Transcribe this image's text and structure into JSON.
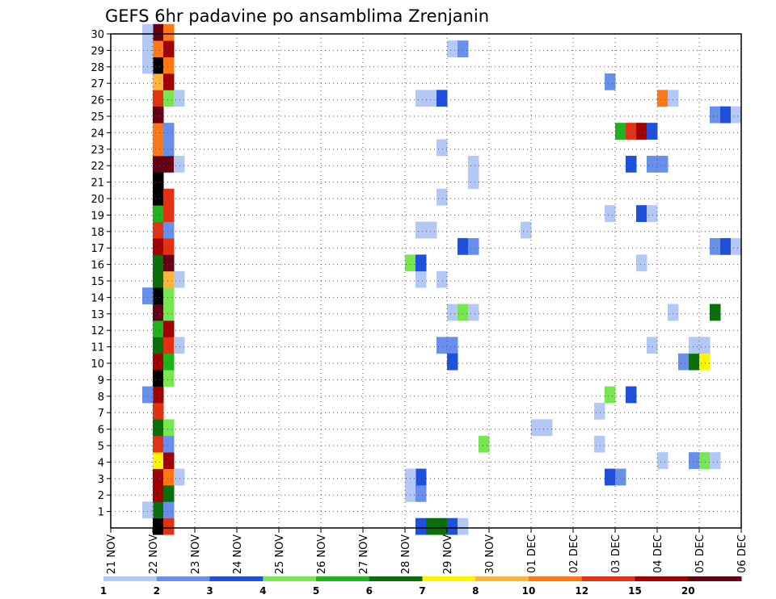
{
  "chart_data": {
    "type": "heatmap",
    "title": "GEFS 6hr padavine po ansamblima Zrenjanin",
    "x_ticks": [
      "21 NOV",
      "22 NOV",
      "23 NOV",
      "24 NOV",
      "25 NOV",
      "26 NOV",
      "27 NOV",
      "28 NOV",
      "29 NOV",
      "30 NOV",
      "01 DEC",
      "02 DEC",
      "03 DEC",
      "04 DEC",
      "05 DEC",
      "06 DEC"
    ],
    "y_ticks": [
      "1",
      "2",
      "3",
      "4",
      "5",
      "6",
      "7",
      "8",
      "9",
      "10",
      "11",
      "12",
      "13",
      "14",
      "15",
      "16",
      "17",
      "18",
      "19",
      "20",
      "21",
      "22",
      "23",
      "24",
      "25",
      "26",
      "27",
      "28",
      "29",
      "30"
    ],
    "x_unit": "6-hour steps after 21 NOV 00Z",
    "xlim": [
      0,
      60
    ],
    "ylim": [
      0,
      30
    ],
    "grid": true,
    "colorbar": {
      "labels": [
        "1",
        "2",
        "3",
        "4",
        "5",
        "6",
        "7",
        "8",
        "10",
        "12",
        "15",
        "20"
      ],
      "colors": [
        "#b4c8f5",
        "#6890eb",
        "#1f50dc",
        "#78e650",
        "#1eb41e",
        "#0a6e0a",
        "#fff500",
        "#ffb43c",
        "#ff7814",
        "#e13214",
        "#a00000",
        "#640014"
      ]
    },
    "cells": [
      [
        4.5,
        0,
        12
      ],
      [
        4.5,
        1,
        5
      ],
      [
        4.5,
        2,
        10
      ],
      [
        4.5,
        3,
        10
      ],
      [
        4.5,
        4,
        6
      ],
      [
        4.5,
        5,
        9
      ],
      [
        4.5,
        6,
        5
      ],
      [
        4.5,
        7,
        9
      ],
      [
        4.5,
        8,
        10
      ],
      [
        4.5,
        9,
        12
      ],
      [
        4.5,
        10,
        10
      ],
      [
        4.5,
        11,
        5
      ],
      [
        4.5,
        12,
        4
      ],
      [
        4.5,
        13,
        11
      ],
      [
        4.5,
        14,
        12
      ],
      [
        4.5,
        15,
        5
      ],
      [
        4.5,
        16,
        5
      ],
      [
        4.5,
        17,
        10
      ],
      [
        4.5,
        18,
        9
      ],
      [
        4.5,
        19,
        4
      ],
      [
        4.5,
        20,
        12
      ],
      [
        4.5,
        21,
        12
      ],
      [
        4.5,
        22,
        11
      ],
      [
        4.5,
        23,
        8
      ],
      [
        4.5,
        24,
        8
      ],
      [
        4.5,
        25,
        11
      ],
      [
        4.5,
        26,
        9
      ],
      [
        4.5,
        27,
        7
      ],
      [
        4.5,
        28,
        12
      ],
      [
        4.5,
        29,
        8
      ],
      [
        4.5,
        30,
        11
      ],
      [
        5.5,
        0,
        9
      ],
      [
        5.5,
        1,
        1
      ],
      [
        5.5,
        2,
        5
      ],
      [
        5.5,
        3,
        8
      ],
      [
        5.5,
        4,
        10
      ],
      [
        5.5,
        5,
        1
      ],
      [
        5.5,
        6,
        3
      ],
      [
        5.5,
        9,
        3
      ],
      [
        5.5,
        10,
        4
      ],
      [
        5.5,
        11,
        9
      ],
      [
        5.5,
        12,
        10
      ],
      [
        5.5,
        13,
        3
      ],
      [
        5.5,
        14,
        3
      ],
      [
        5.5,
        15,
        7
      ],
      [
        5.5,
        16,
        11
      ],
      [
        5.5,
        17,
        9
      ],
      [
        5.5,
        18,
        1
      ],
      [
        5.5,
        19,
        9
      ],
      [
        5.5,
        20,
        9
      ],
      [
        5.5,
        22,
        11
      ],
      [
        5.5,
        23,
        1
      ],
      [
        5.5,
        24,
        1
      ],
      [
        5.5,
        26,
        3
      ],
      [
        5.5,
        27,
        10
      ],
      [
        5.5,
        28,
        8
      ],
      [
        5.5,
        29,
        10
      ],
      [
        5.5,
        30,
        8
      ],
      [
        3.5,
        1,
        0
      ],
      [
        3.5,
        8,
        1
      ],
      [
        3.5,
        14,
        1
      ],
      [
        3.5,
        28,
        0
      ],
      [
        3.5,
        29,
        0
      ],
      [
        3.5,
        30,
        0
      ],
      [
        6.5,
        3,
        0
      ],
      [
        6.5,
        11,
        0
      ],
      [
        6.5,
        15,
        0
      ],
      [
        6.5,
        22,
        0
      ],
      [
        6.5,
        26,
        0
      ],
      [
        29.5,
        0,
        2
      ],
      [
        30.5,
        0,
        5
      ],
      [
        31.5,
        0,
        5
      ],
      [
        32.5,
        0,
        2
      ],
      [
        33.5,
        0,
        0
      ],
      [
        28.5,
        2,
        0
      ],
      [
        29.5,
        2,
        1
      ],
      [
        29.5,
        3,
        2
      ],
      [
        28.5,
        3,
        0
      ],
      [
        35.5,
        5,
        3
      ],
      [
        40.5,
        6,
        0
      ],
      [
        41.5,
        6,
        0
      ],
      [
        46.5,
        7,
        0
      ],
      [
        46.5,
        5,
        0
      ],
      [
        47.5,
        8,
        3
      ],
      [
        49.5,
        8,
        2
      ],
      [
        47.5,
        3,
        2
      ],
      [
        48.5,
        3,
        1
      ],
      [
        52.5,
        4,
        0
      ],
      [
        55.5,
        4,
        1
      ],
      [
        56.5,
        4,
        3
      ],
      [
        57.5,
        4,
        0
      ],
      [
        54.5,
        10,
        1
      ],
      [
        55.5,
        10,
        5
      ],
      [
        56.5,
        10,
        6
      ],
      [
        55.5,
        11,
        0
      ],
      [
        56.5,
        11,
        0
      ],
      [
        51.5,
        11,
        0
      ],
      [
        31.5,
        11,
        1
      ],
      [
        32.5,
        11,
        1
      ],
      [
        32.5,
        10,
        2
      ],
      [
        32.5,
        13,
        0
      ],
      [
        33.5,
        13,
        3
      ],
      [
        34.5,
        13,
        0
      ],
      [
        53.5,
        13,
        0
      ],
      [
        57.5,
        13,
        5
      ],
      [
        29.5,
        15,
        0
      ],
      [
        31.5,
        15,
        0
      ],
      [
        28.5,
        16,
        3
      ],
      [
        29.5,
        16,
        2
      ],
      [
        50.5,
        16,
        0
      ],
      [
        33.5,
        17,
        2
      ],
      [
        34.5,
        17,
        1
      ],
      [
        57.5,
        17,
        1
      ],
      [
        58.5,
        17,
        2
      ],
      [
        59.5,
        17,
        0
      ],
      [
        29.5,
        18,
        0
      ],
      [
        30.5,
        18,
        0
      ],
      [
        39.5,
        18,
        0
      ],
      [
        47.5,
        19,
        0
      ],
      [
        50.5,
        19,
        2
      ],
      [
        51.5,
        19,
        0
      ],
      [
        31.5,
        20,
        0
      ],
      [
        34.5,
        21,
        0
      ],
      [
        34.5,
        22,
        0
      ],
      [
        49.5,
        22,
        2
      ],
      [
        51.5,
        22,
        1
      ],
      [
        52.5,
        22,
        1
      ],
      [
        31.5,
        23,
        0
      ],
      [
        48.5,
        24,
        4
      ],
      [
        49.5,
        24,
        9
      ],
      [
        50.5,
        24,
        10
      ],
      [
        51.5,
        24,
        2
      ],
      [
        57.5,
        25,
        1
      ],
      [
        58.5,
        25,
        2
      ],
      [
        59.5,
        25,
        0
      ],
      [
        29.5,
        26,
        0
      ],
      [
        30.5,
        26,
        0
      ],
      [
        31.5,
        26,
        2
      ],
      [
        52.5,
        26,
        8
      ],
      [
        53.5,
        26,
        0
      ],
      [
        47.5,
        27,
        1
      ],
      [
        32.5,
        29,
        0
      ],
      [
        33.5,
        29,
        1
      ]
    ]
  }
}
